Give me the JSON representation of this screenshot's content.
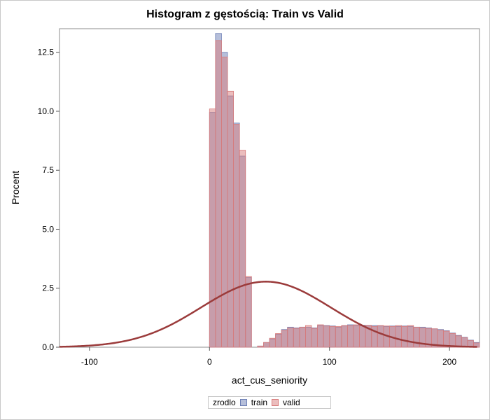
{
  "chart_data": {
    "type": "bar",
    "title": "Histogram z gęstością: Train vs Valid",
    "xlabel": "act_cus_seniority",
    "ylabel": "Procent",
    "xlim": [
      -125,
      225
    ],
    "ylim": [
      0,
      13.5
    ],
    "x_ticks": [
      -100,
      0,
      100,
      200
    ],
    "x_tick_labels": [
      "-100",
      "0",
      "100",
      "200"
    ],
    "y_ticks": [
      0,
      2.5,
      5,
      7.5,
      10,
      12.5
    ],
    "y_tick_labels": [
      "0.0",
      "2.5",
      "5.0",
      "7.5",
      "10.0",
      "12.5"
    ],
    "bin_width": 5,
    "bin_starts": [
      0,
      5,
      10,
      15,
      20,
      25,
      30,
      35,
      40,
      45,
      50,
      55,
      60,
      65,
      70,
      75,
      80,
      85,
      90,
      95,
      100,
      105,
      110,
      115,
      120,
      125,
      130,
      135,
      140,
      145,
      150,
      155,
      160,
      165,
      170,
      175,
      180,
      185,
      190,
      195,
      200,
      205,
      210,
      215,
      220
    ],
    "series": [
      {
        "name": "train",
        "color": "#6d7fb5",
        "values": [
          9.95,
          13.3,
          12.5,
          10.65,
          9.5,
          8.1,
          2.95,
          0.0,
          0.05,
          0.2,
          0.35,
          0.55,
          0.75,
          0.85,
          0.82,
          0.85,
          0.85,
          0.82,
          0.92,
          0.92,
          0.9,
          0.85,
          0.9,
          0.95,
          0.92,
          0.93,
          0.9,
          0.92,
          0.9,
          0.88,
          0.9,
          0.88,
          0.9,
          0.88,
          0.85,
          0.85,
          0.82,
          0.78,
          0.75,
          0.7,
          0.6,
          0.5,
          0.42,
          0.3,
          0.2
        ]
      },
      {
        "name": "valid",
        "color": "#d87c7c",
        "values": [
          10.1,
          13.0,
          12.3,
          10.85,
          9.45,
          8.35,
          3.0,
          0.0,
          0.05,
          0.2,
          0.38,
          0.58,
          0.72,
          0.82,
          0.8,
          0.85,
          0.92,
          0.8,
          0.95,
          0.9,
          0.88,
          0.88,
          0.92,
          0.92,
          0.95,
          0.9,
          0.93,
          0.88,
          0.92,
          0.9,
          0.88,
          0.92,
          0.88,
          0.92,
          0.85,
          0.82,
          0.8,
          0.78,
          0.72,
          0.68,
          0.58,
          0.48,
          0.4,
          0.28,
          0.18
        ]
      }
    ],
    "density_curve": {
      "kind": "normal",
      "mean": 47,
      "peak_percent": 2.78,
      "sd": 54,
      "color": "#9b3b3b"
    },
    "legend": {
      "title": "zrodlo",
      "entries": [
        "train",
        "valid"
      ],
      "placement": "bottom-center"
    },
    "grid": false
  }
}
